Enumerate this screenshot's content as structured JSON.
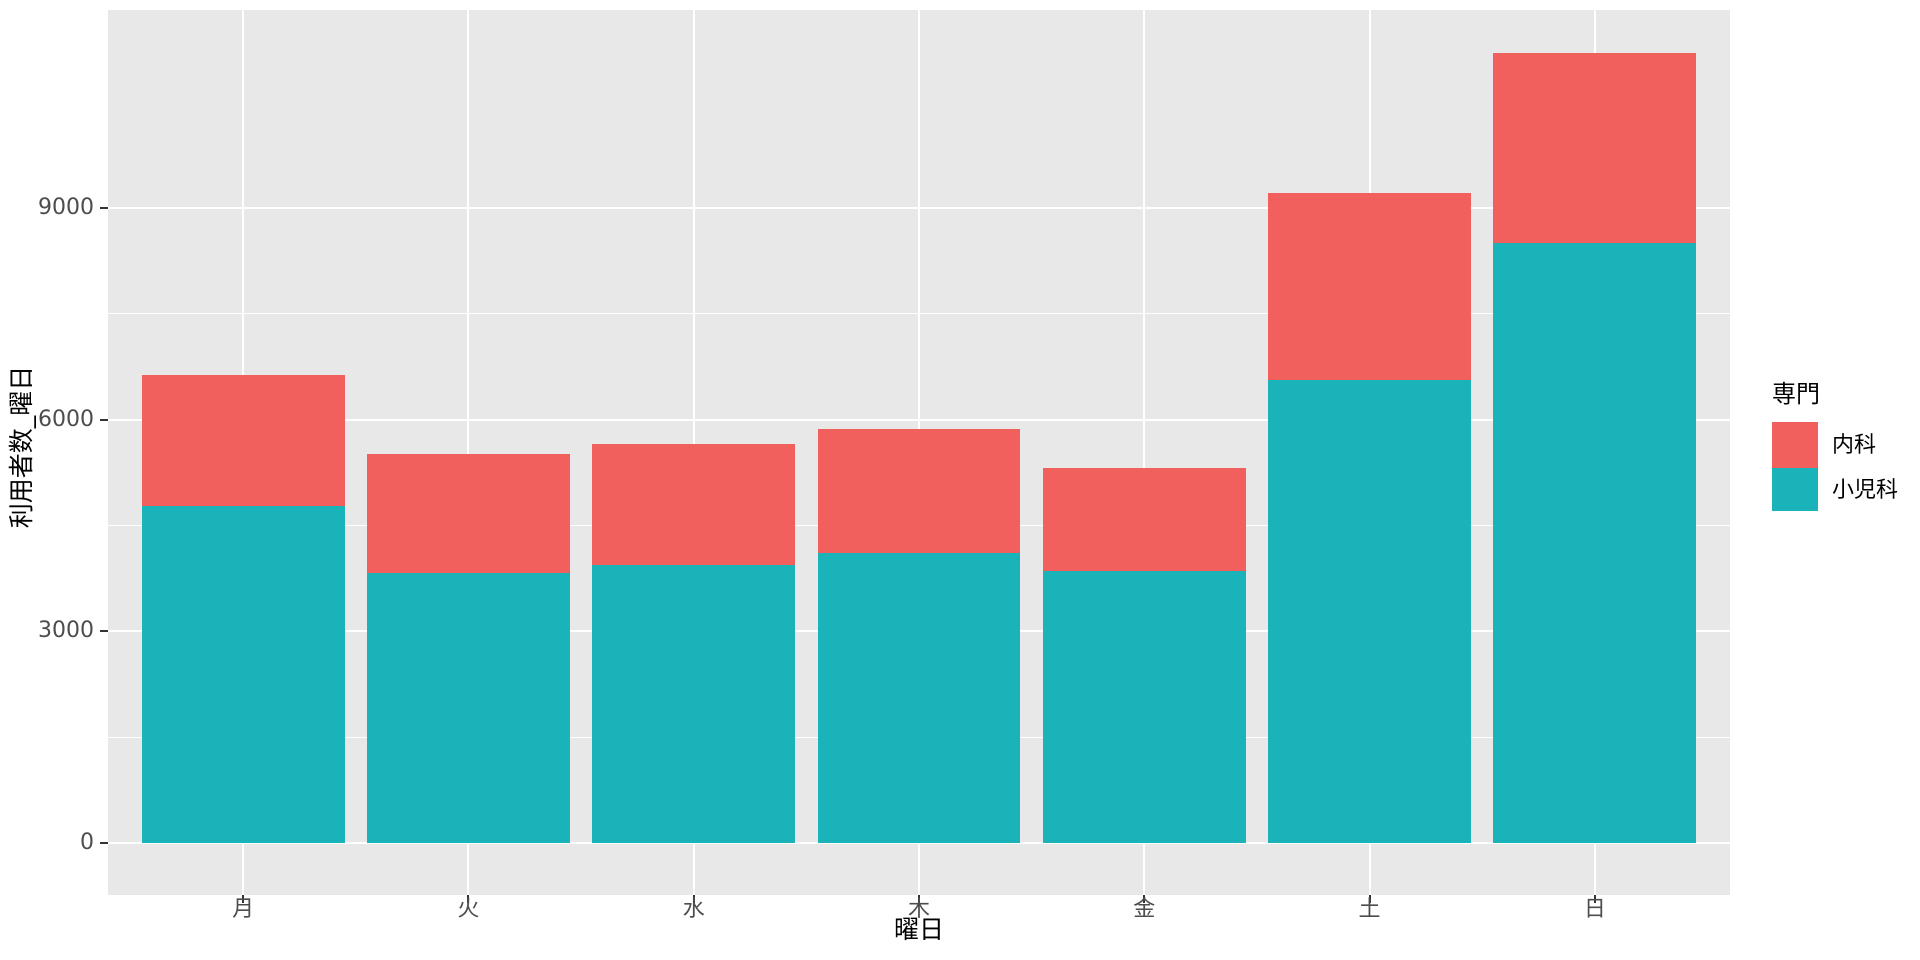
{
  "chart_data": {
    "type": "bar",
    "stacked": true,
    "title": "",
    "xlabel": "曜日",
    "ylabel": "利用者数_曜日",
    "categories": [
      "月",
      "火",
      "水",
      "木",
      "金",
      "土",
      "日"
    ],
    "series": [
      {
        "name": "内科",
        "color": "#F2605D",
        "values": [
          1850,
          1700,
          1720,
          1760,
          1470,
          2650,
          2680
        ]
      },
      {
        "name": "小児科",
        "color": "#19B3B9",
        "values": [
          4780,
          3820,
          3940,
          4110,
          3850,
          6560,
          8510
        ]
      }
    ],
    "stack_bottom_to_top": [
      "小児科",
      "内科"
    ],
    "totals": [
      6630,
      5520,
      5660,
      5870,
      5320,
      9210,
      11190
    ],
    "yticks": [
      0,
      3000,
      6000,
      9000
    ],
    "ytick_labels": [
      "0",
      "3000",
      "6000",
      "9000"
    ],
    "yminor": [
      1500,
      4500,
      7500
    ],
    "ylim": [
      -740,
      11810
    ],
    "grid": true,
    "legend": {
      "title": "専門",
      "position": "right",
      "items": [
        "内科",
        "小児科"
      ]
    },
    "colors": {
      "panel_bg": "#E8E8E8",
      "grid": "#FFFFFF",
      "tick": "#333333",
      "tick_label": "#4D4D4D",
      "axis_title": "#000000",
      "figure_bg": "#FFFFFF"
    }
  }
}
